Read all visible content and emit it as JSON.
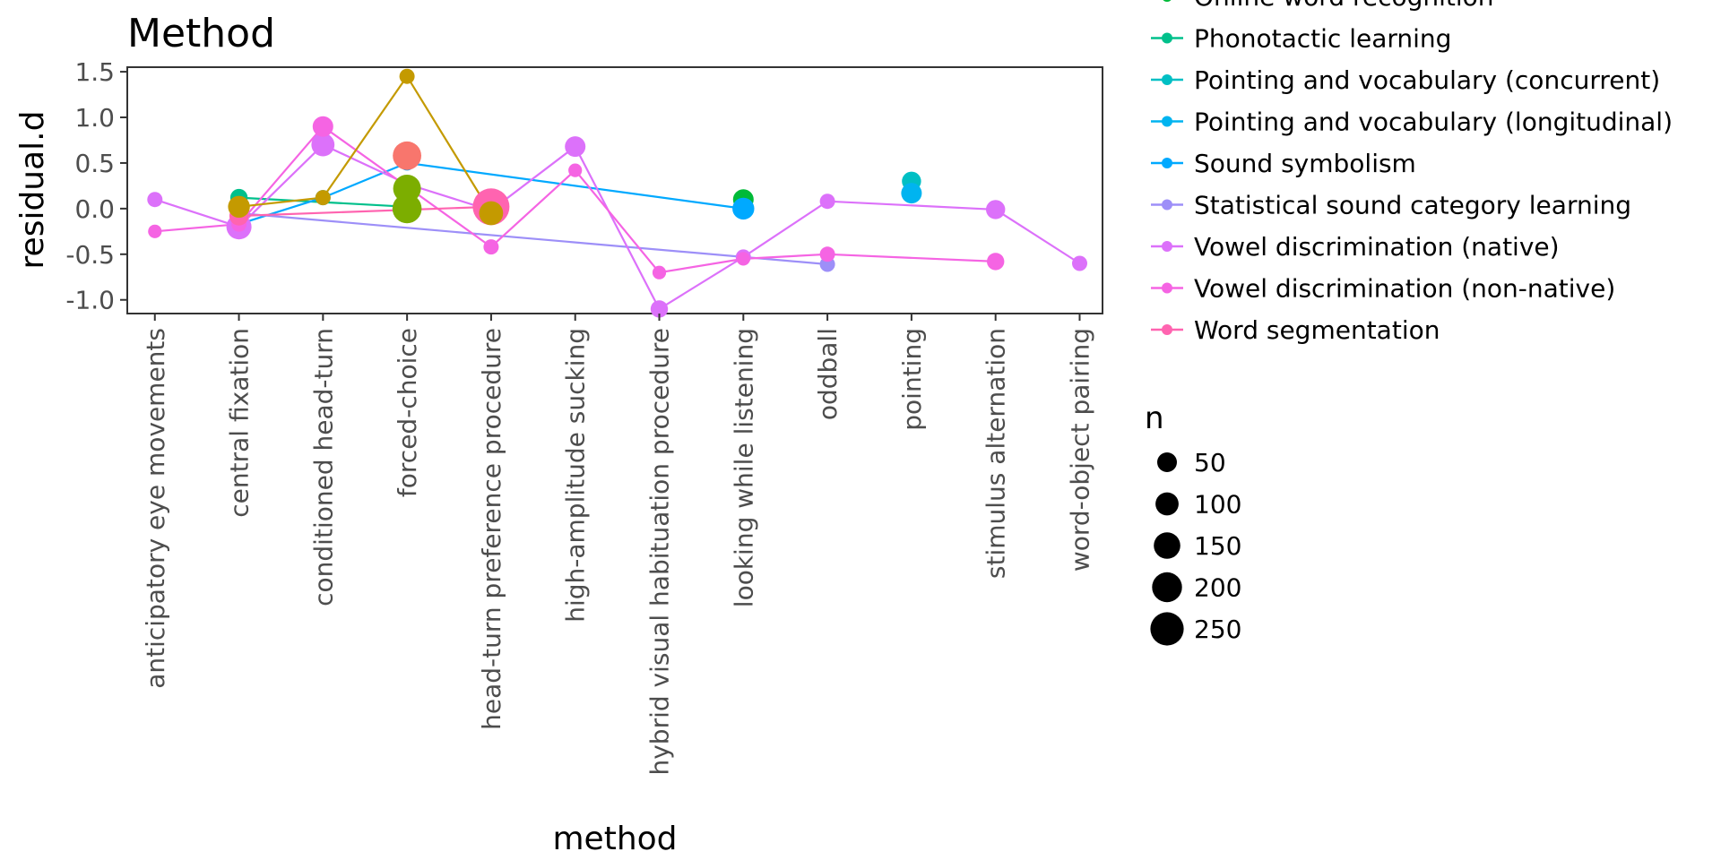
{
  "chart_data": {
    "type": "scatter",
    "title": "Method",
    "xlabel": "method",
    "ylabel": "residual.d",
    "categories": [
      "anticipatory eye movements",
      "central fixation",
      "conditioned head-turn",
      "forced-choice",
      "head-turn preference procedure",
      "high-amplitude sucking",
      "hybrid visual habituation procedure",
      "looking while listening",
      "oddball",
      "pointing",
      "stimulus alternation",
      "word-object pairing"
    ],
    "ylim": [
      -1.15,
      1.55
    ],
    "yticks": [
      -1.0,
      -0.5,
      0.0,
      0.5,
      1.0,
      1.5
    ],
    "ytick_labels": [
      "-1.0",
      "-0.5",
      "0.0",
      "0.5",
      "1.0",
      "1.5"
    ],
    "grid": false,
    "legend_position": "right",
    "size_legend": {
      "title": "n",
      "entries": [
        {
          "label": "50",
          "value": 50
        },
        {
          "label": "100",
          "value": 100
        },
        {
          "label": "150",
          "value": 150
        },
        {
          "label": "200",
          "value": 200
        },
        {
          "label": "250",
          "value": 250
        }
      ]
    },
    "series": [
      {
        "name": "Online word recognition",
        "color": "#00BA38",
        "points": [
          {
            "x": 7,
            "y": 0.1,
            "n": 60
          }
        ]
      },
      {
        "name": "Phonotactic learning",
        "color": "#00C08B",
        "points": [
          {
            "x": 1,
            "y": 0.12,
            "n": 40
          },
          {
            "x": 3,
            "y": 0.02,
            "n": 60
          }
        ]
      },
      {
        "name": "Pointing and vocabulary (concurrent)",
        "color": "#00BFC4",
        "points": [
          {
            "x": 9,
            "y": 0.3,
            "n": 50
          }
        ]
      },
      {
        "name": "Pointing and vocabulary (longitudinal)",
        "color": "#00B4F0",
        "points": [
          {
            "x": 9,
            "y": 0.17,
            "n": 60
          }
        ]
      },
      {
        "name": "Sound symbolism",
        "color": "#00A9FF",
        "points": [
          {
            "x": 1,
            "y": -0.17,
            "n": 40
          },
          {
            "x": 2,
            "y": 0.12,
            "n": 30
          },
          {
            "x": 3,
            "y": 0.5,
            "n": 30
          },
          {
            "x": 7,
            "y": 0.0,
            "n": 70
          }
        ]
      },
      {
        "name": "Statistical sound category learning",
        "color": "#9D8FF8",
        "points": [
          {
            "x": 1,
            "y": -0.05,
            "n": 40
          },
          {
            "x": 8,
            "y": -0.61,
            "n": 30
          }
        ]
      },
      {
        "name": "Vowel discrimination (native)",
        "color": "#DC71FA",
        "points": [
          {
            "x": 0,
            "y": 0.1,
            "n": 30
          },
          {
            "x": 1,
            "y": -0.2,
            "n": 100
          },
          {
            "x": 2,
            "y": 0.7,
            "n": 80
          },
          {
            "x": 3,
            "y": 0.27,
            "n": 40
          },
          {
            "x": 4,
            "y": -0.02,
            "n": 40
          },
          {
            "x": 5,
            "y": 0.68,
            "n": 60
          },
          {
            "x": 6,
            "y": -1.1,
            "n": 40
          },
          {
            "x": 7,
            "y": -0.53,
            "n": 30
          },
          {
            "x": 8,
            "y": 0.08,
            "n": 30
          },
          {
            "x": 10,
            "y": -0.01,
            "n": 50
          },
          {
            "x": 11,
            "y": -0.6,
            "n": 30
          }
        ]
      },
      {
        "name": "Vowel discrimination (non-native)",
        "color": "#F564E3",
        "points": [
          {
            "x": 0,
            "y": -0.25,
            "n": 25
          },
          {
            "x": 1,
            "y": -0.17,
            "n": 30
          },
          {
            "x": 2,
            "y": 0.9,
            "n": 60
          },
          {
            "x": 4,
            "y": -0.42,
            "n": 30
          },
          {
            "x": 5,
            "y": 0.42,
            "n": 25
          },
          {
            "x": 6,
            "y": -0.7,
            "n": 25
          },
          {
            "x": 7,
            "y": -0.55,
            "n": 25
          },
          {
            "x": 8,
            "y": -0.5,
            "n": 30
          },
          {
            "x": 10,
            "y": -0.58,
            "n": 40
          }
        ]
      },
      {
        "name": "Word segmentation",
        "color": "#FF64B0",
        "points": [
          {
            "x": 1,
            "y": -0.08,
            "n": 50
          },
          {
            "x": 4,
            "y": 0.02,
            "n": 270
          }
        ]
      }
    ],
    "unlisted_series": [
      {
        "color": "#C49A00",
        "points": [
          {
            "x": 1,
            "y": 0.02,
            "n": 70
          },
          {
            "x": 2,
            "y": 0.12,
            "n": 30
          },
          {
            "x": 3,
            "y": 1.45,
            "n": 30
          },
          {
            "x": 4,
            "y": -0.05,
            "n": 90
          }
        ]
      },
      {
        "color": "#7CAE00",
        "points": [
          {
            "x": 3,
            "y": 0.0,
            "n": 150
          },
          {
            "x": 3,
            "y": 0.22,
            "n": 130
          }
        ]
      },
      {
        "color": "#F8766D",
        "points": [
          {
            "x": 3,
            "y": 0.58,
            "n": 140
          }
        ]
      }
    ]
  }
}
